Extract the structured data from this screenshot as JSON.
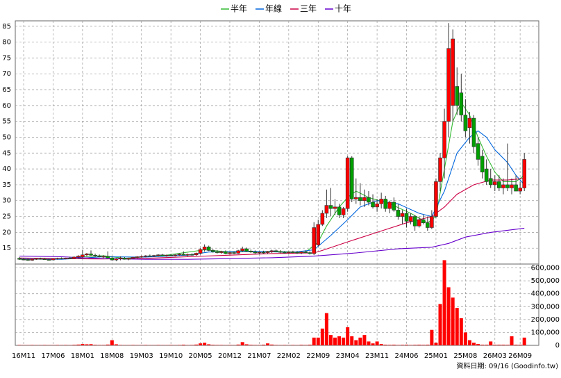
{
  "chart_data": {
    "type": "candlestick",
    "legend": "top",
    "up_color": "#ff0000",
    "down_color": "#00a000",
    "volume_color": "#ff0000",
    "ylim": [
      10,
      86.7
    ],
    "yticks": [
      15,
      20,
      25,
      30,
      35,
      40,
      45,
      50,
      55,
      60,
      65,
      70,
      75,
      80,
      85
    ],
    "vlim": [
      0,
      630000
    ],
    "vticks": [
      {
        "value": 0,
        "label": "0"
      },
      {
        "value": 100000,
        "label": "100,000"
      },
      {
        "value": 200000,
        "label": "200,000"
      },
      {
        "value": 300000,
        "label": "300,000"
      },
      {
        "value": 400000,
        "label": "400,000"
      },
      {
        "value": 500000,
        "label": "500,000"
      },
      {
        "value": 600000,
        "label": "600,000"
      }
    ],
    "grid": true,
    "footnote": "資料日期: 09/16  (Goodinfo.tw)",
    "categories": [
      null,
      "16M11",
      null,
      null,
      null,
      null,
      null,
      null,
      "17M06",
      null,
      null,
      null,
      null,
      null,
      null,
      "18M01",
      null,
      null,
      null,
      null,
      null,
      null,
      "18M08",
      null,
      null,
      null,
      null,
      null,
      null,
      "19M03",
      null,
      null,
      null,
      null,
      null,
      null,
      "19M10",
      null,
      null,
      null,
      null,
      null,
      null,
      "20M05",
      null,
      null,
      null,
      null,
      null,
      null,
      "20M12",
      null,
      null,
      null,
      null,
      null,
      null,
      "21M07",
      null,
      null,
      null,
      null,
      null,
      null,
      "22M02",
      null,
      null,
      null,
      null,
      null,
      null,
      "22M09",
      null,
      null,
      null,
      null,
      null,
      null,
      "23M04",
      null,
      null,
      null,
      null,
      null,
      null,
      "23M11",
      null,
      null,
      null,
      null,
      null,
      null,
      "24M06",
      null,
      null,
      null,
      null,
      null,
      null,
      "25M01",
      null,
      null,
      null,
      null,
      null,
      null,
      "25M08",
      null,
      null,
      null,
      null,
      null,
      null,
      "26M03",
      null,
      null,
      null,
      null,
      null,
      "26M09",
      null
    ],
    "ohlc": [
      [
        11.8,
        12.2,
        11.3,
        11.5
      ],
      [
        11.5,
        11.9,
        11.2,
        11.4
      ],
      [
        11.4,
        11.7,
        11.0,
        11.2
      ],
      [
        11.2,
        11.6,
        11.0,
        11.5
      ],
      [
        11.5,
        11.9,
        11.3,
        11.7
      ],
      [
        11.7,
        12.0,
        11.4,
        11.6
      ],
      [
        11.6,
        11.9,
        11.3,
        11.4
      ],
      [
        11.4,
        11.7,
        11.1,
        11.3
      ],
      [
        11.3,
        11.8,
        11.1,
        11.6
      ],
      [
        11.6,
        12.0,
        11.4,
        11.8
      ],
      [
        11.8,
        12.1,
        11.5,
        11.7
      ],
      [
        11.7,
        12.0,
        11.5,
        11.9
      ],
      [
        11.9,
        12.3,
        11.6,
        11.8
      ],
      [
        11.8,
        12.4,
        11.6,
        12.2
      ],
      [
        12.2,
        12.8,
        11.9,
        12.5
      ],
      [
        12.3,
        14.5,
        11.9,
        12.9
      ],
      [
        12.9,
        13.5,
        12.4,
        13.2
      ],
      [
        13.2,
        14.3,
        12.6,
        12.8
      ],
      [
        12.8,
        13.3,
        12.2,
        12.6
      ],
      [
        12.6,
        13.0,
        12.1,
        12.3
      ],
      [
        12.3,
        12.8,
        11.9,
        12.4
      ],
      [
        12.4,
        14.0,
        11.8,
        11.9
      ],
      [
        11.9,
        12.5,
        11.0,
        11.3
      ],
      [
        11.3,
        11.9,
        10.9,
        11.6
      ],
      [
        11.6,
        12.4,
        11.2,
        11.9
      ],
      [
        11.9,
        12.2,
        11.4,
        11.5
      ],
      [
        11.5,
        12.0,
        11.2,
        11.8
      ],
      [
        11.8,
        12.3,
        11.5,
        12.1
      ],
      [
        12.1,
        12.5,
        11.8,
        12.3
      ],
      [
        12.3,
        12.7,
        12.0,
        12.4
      ],
      [
        12.4,
        12.8,
        12.1,
        12.6
      ],
      [
        12.6,
        13.0,
        12.3,
        12.5
      ],
      [
        12.5,
        12.9,
        12.2,
        12.7
      ],
      [
        12.7,
        13.1,
        12.4,
        12.9
      ],
      [
        12.9,
        13.2,
        12.5,
        12.6
      ],
      [
        12.6,
        13.0,
        12.3,
        12.8
      ],
      [
        12.8,
        13.2,
        12.5,
        12.7
      ],
      [
        12.7,
        13.1,
        12.4,
        12.9
      ],
      [
        12.9,
        13.4,
        12.6,
        13.1
      ],
      [
        13.1,
        14.0,
        12.7,
        12.8
      ],
      [
        12.8,
        13.3,
        12.5,
        13.0
      ],
      [
        13.0,
        13.4,
        12.6,
        12.9
      ],
      [
        12.9,
        13.6,
        12.6,
        13.4
      ],
      [
        13.4,
        15.0,
        13.0,
        14.6
      ],
      [
        14.6,
        16.2,
        13.9,
        15.4
      ],
      [
        15.4,
        15.8,
        14.1,
        14.3
      ],
      [
        14.3,
        14.8,
        13.6,
        13.9
      ],
      [
        13.9,
        14.4,
        13.3,
        13.6
      ],
      [
        13.6,
        14.2,
        13.2,
        13.9
      ],
      [
        13.9,
        14.3,
        13.1,
        13.3
      ],
      [
        13.3,
        13.9,
        13.0,
        13.6
      ],
      [
        13.6,
        14.0,
        13.1,
        13.4
      ],
      [
        13.4,
        14.5,
        13.2,
        14.2
      ],
      [
        14.2,
        15.5,
        13.8,
        14.8
      ],
      [
        14.8,
        15.2,
        13.9,
        14.1
      ],
      [
        14.1,
        14.6,
        13.5,
        13.8
      ],
      [
        13.8,
        14.3,
        13.2,
        13.5
      ],
      [
        13.5,
        14.0,
        13.1,
        13.7
      ],
      [
        13.7,
        14.2,
        13.3,
        13.6
      ],
      [
        13.6,
        14.1,
        13.2,
        13.9
      ],
      [
        13.9,
        14.5,
        13.5,
        14.2
      ],
      [
        14.2,
        14.6,
        13.7,
        13.9
      ],
      [
        13.9,
        14.4,
        13.4,
        13.7
      ],
      [
        13.7,
        14.1,
        13.3,
        13.6
      ],
      [
        13.6,
        14.0,
        13.2,
        13.8
      ],
      [
        13.8,
        14.2,
        13.4,
        13.7
      ],
      [
        13.7,
        14.1,
        13.2,
        13.5
      ],
      [
        13.5,
        14.0,
        13.1,
        13.8
      ],
      [
        13.8,
        14.3,
        13.4,
        13.6
      ],
      [
        13.6,
        14.0,
        13.0,
        13.3
      ],
      [
        13.3,
        23.2,
        12.8,
        21.5
      ],
      [
        16.0,
        24.0,
        15.5,
        22.5
      ],
      [
        22.5,
        27.0,
        22.0,
        26.0
      ],
      [
        26.0,
        33.5,
        24.5,
        28.5
      ],
      [
        28.5,
        34.0,
        25.0,
        27.5
      ],
      [
        27.5,
        30.5,
        25.5,
        28.0
      ],
      [
        28.0,
        29.0,
        24.5,
        25.5
      ],
      [
        25.5,
        28.0,
        24.5,
        27.5
      ],
      [
        27.5,
        44.0,
        26.5,
        43.5
      ],
      [
        43.5,
        44.0,
        29.5,
        30.5
      ],
      [
        30.5,
        37.0,
        29.0,
        31.0
      ],
      [
        31.0,
        35.5,
        28.5,
        30.0
      ],
      [
        30.0,
        33.5,
        28.0,
        31.0
      ],
      [
        31.0,
        33.0,
        28.5,
        29.5
      ],
      [
        29.5,
        32.0,
        27.5,
        28.0
      ],
      [
        28.0,
        30.5,
        26.5,
        29.0
      ],
      [
        29.0,
        32.5,
        27.5,
        30.5
      ],
      [
        30.5,
        31.5,
        26.5,
        27.5
      ],
      [
        27.5,
        30.0,
        26.0,
        29.5
      ],
      [
        29.5,
        31.0,
        26.5,
        27.0
      ],
      [
        27.0,
        29.0,
        24.0,
        25.0
      ],
      [
        25.0,
        27.0,
        22.5,
        26.0
      ],
      [
        26.0,
        27.5,
        21.5,
        23.5
      ],
      [
        23.5,
        26.0,
        22.5,
        25.0
      ],
      [
        25.0,
        25.5,
        20.5,
        22.0
      ],
      [
        22.0,
        25.0,
        21.5,
        24.0
      ],
      [
        24.0,
        25.5,
        22.5,
        23.0
      ],
      [
        23.0,
        25.0,
        20.5,
        21.5
      ],
      [
        21.5,
        27.0,
        21.0,
        25.0
      ],
      [
        25.0,
        37.0,
        24.5,
        36.0
      ],
      [
        36.0,
        45.0,
        33.0,
        43.5
      ],
      [
        43.5,
        59.0,
        37.0,
        55.0
      ],
      [
        55.0,
        86.0,
        50.0,
        78.0
      ],
      [
        60.0,
        84.0,
        55.0,
        81.0
      ],
      [
        66.0,
        72.0,
        57.0,
        60.0
      ],
      [
        64.0,
        70.0,
        55.0,
        57.0
      ],
      [
        57.0,
        62.0,
        50.0,
        52.0
      ],
      [
        53.0,
        58.0,
        48.0,
        56.0
      ],
      [
        56.0,
        57.0,
        45.0,
        47.0
      ],
      [
        48.0,
        50.0,
        41.0,
        43.0
      ],
      [
        44.0,
        46.0,
        37.0,
        39.0
      ],
      [
        40.0,
        43.0,
        35.0,
        36.0
      ],
      [
        37.0,
        40.0,
        34.0,
        35.0
      ],
      [
        35.0,
        38.0,
        33.0,
        36.0
      ],
      [
        36.0,
        38.0,
        33.0,
        34.0
      ],
      [
        34.0,
        37.0,
        32.0,
        35.0
      ],
      [
        35.0,
        48.0,
        33.0,
        34.0
      ],
      [
        34.0,
        37.0,
        32.0,
        35.0
      ],
      [
        35.0,
        38.0,
        33.0,
        33.0
      ],
      [
        33.0,
        36.0,
        32.0,
        34.0
      ],
      [
        34.0,
        45.0,
        33.0,
        43.0
      ]
    ],
    "volume": [
      3000,
      2000,
      2000,
      3000,
      2000,
      2000,
      3000,
      2000,
      2000,
      3000,
      2000,
      3000,
      2000,
      4000,
      6000,
      10000,
      8000,
      9000,
      4000,
      3000,
      3000,
      6000,
      40000,
      8000,
      3000,
      2000,
      2000,
      3000,
      2000,
      2000,
      3000,
      2000,
      2000,
      3000,
      2000,
      2000,
      3000,
      2000,
      3000,
      5000,
      2000,
      3000,
      6000,
      15000,
      20000,
      8000,
      4000,
      3000,
      3000,
      2000,
      3000,
      2000,
      6000,
      25000,
      8000,
      4000,
      3000,
      3000,
      5000,
      15000,
      6000,
      3000,
      2000,
      3000,
      2000,
      3000,
      2000,
      4000,
      3000,
      5000,
      60000,
      60000,
      130000,
      250000,
      80000,
      60000,
      70000,
      60000,
      140000,
      70000,
      40000,
      60000,
      80000,
      30000,
      15000,
      30000,
      10000,
      5000,
      4000,
      5000,
      3000,
      4000,
      5000,
      3000,
      4000,
      5000,
      4000,
      5000,
      120000,
      20000,
      320000,
      660000,
      450000,
      370000,
      290000,
      210000,
      100000,
      40000,
      20000,
      10000,
      5000,
      5000,
      30000,
      5000,
      5000,
      5000,
      4000,
      70000,
      5000,
      5000,
      60000
    ],
    "lines": [
      {
        "name": "半年",
        "color": "#33bb33",
        "x": [
          0,
          10,
          15,
          20,
          25,
          35,
          44,
          50,
          60,
          68,
          71,
          73,
          76,
          78,
          80,
          83,
          88,
          93,
          97,
          99,
          101,
          103,
          105,
          107,
          109,
          111,
          113,
          115,
          118,
          120
        ],
        "values": [
          11.5,
          11.6,
          12.3,
          12.6,
          11.8,
          12.8,
          14.5,
          13.8,
          14.0,
          13.7,
          17,
          22,
          28,
          31,
          33,
          31,
          29,
          26,
          23,
          25,
          40,
          55,
          61,
          57,
          50,
          44,
          39,
          36,
          36,
          38
        ]
      },
      {
        "name": "年線",
        "color": "#0066dd",
        "x": [
          0,
          10,
          20,
          30,
          40,
          45,
          55,
          65,
          70,
          74,
          78,
          81,
          85,
          90,
          95,
          98,
          101,
          104,
          107,
          109,
          111,
          113,
          116,
          118,
          120
        ],
        "values": [
          11.6,
          11.5,
          12.3,
          12.2,
          12.8,
          13.8,
          14.0,
          13.7,
          14.5,
          19,
          24,
          28,
          30,
          29,
          26,
          25,
          33,
          45,
          50,
          52,
          50,
          46,
          42,
          38,
          35
        ]
      },
      {
        "name": "三年",
        "color": "#cc0044",
        "x": [
          0,
          10,
          20,
          30,
          40,
          50,
          60,
          70,
          72,
          78,
          85,
          92,
          98,
          101,
          104,
          108,
          112,
          116,
          120
        ],
        "values": [
          11.9,
          11.7,
          11.6,
          11.8,
          12.3,
          12.8,
          13.3,
          13.5,
          14.3,
          17,
          20,
          23,
          25,
          28,
          32,
          35,
          36.5,
          36.5,
          37
        ]
      },
      {
        "name": "十年",
        "color": "#6600cc",
        "x": [
          0,
          10,
          20,
          30,
          40,
          50,
          60,
          70,
          80,
          90,
          98,
          102,
          106,
          112,
          120
        ],
        "values": [
          12.5,
          12.3,
          11.7,
          11.5,
          11.5,
          11.7,
          12,
          12.5,
          13.5,
          14.8,
          15.3,
          16.5,
          18.5,
          20,
          21.3
        ]
      }
    ]
  }
}
